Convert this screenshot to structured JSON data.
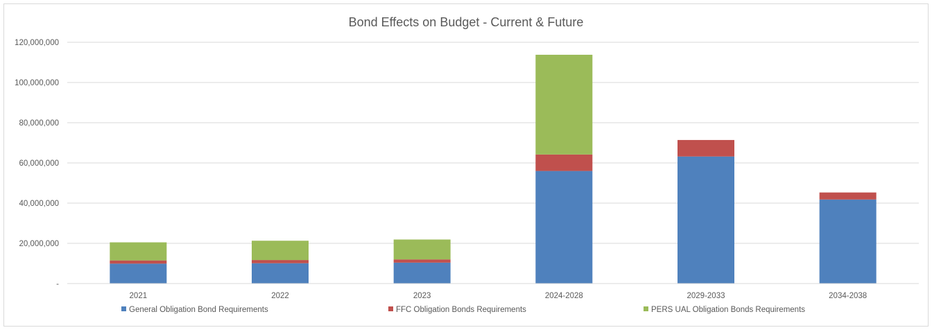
{
  "chart_data": {
    "type": "bar",
    "stacked": true,
    "title": "Bond Effects on Budget - Current & Future",
    "xlabel": "",
    "ylabel": "",
    "categories": [
      "2021",
      "2022",
      "2023",
      "2024-2028",
      "2029-2033",
      "2034-2038"
    ],
    "series": [
      {
        "name": "General Obligation Bond Requirements",
        "color": "#4f81bd",
        "values": [
          9900000,
          10100000,
          10400000,
          56000000,
          63200000,
          41800000
        ]
      },
      {
        "name": "FFC Obligation Bonds Requirements",
        "color": "#c0504d",
        "values": [
          1600000,
          1600000,
          1600000,
          8200000,
          8200000,
          3500000
        ]
      },
      {
        "name": "PERS UAL Obligation Bonds Requirements",
        "color": "#9bbb59",
        "values": [
          9000000,
          9600000,
          9900000,
          49600000,
          0,
          0
        ]
      }
    ],
    "ylim": [
      0,
      120000000
    ],
    "yticks": [
      0,
      20000000,
      40000000,
      60000000,
      80000000,
      100000000,
      120000000
    ],
    "ytick_labels": [
      "-",
      "20,000,000",
      "40,000,000",
      "60,000,000",
      "80,000,000",
      "100,000,000",
      "120,000,000"
    ],
    "grid": true,
    "legend_position": "bottom"
  }
}
